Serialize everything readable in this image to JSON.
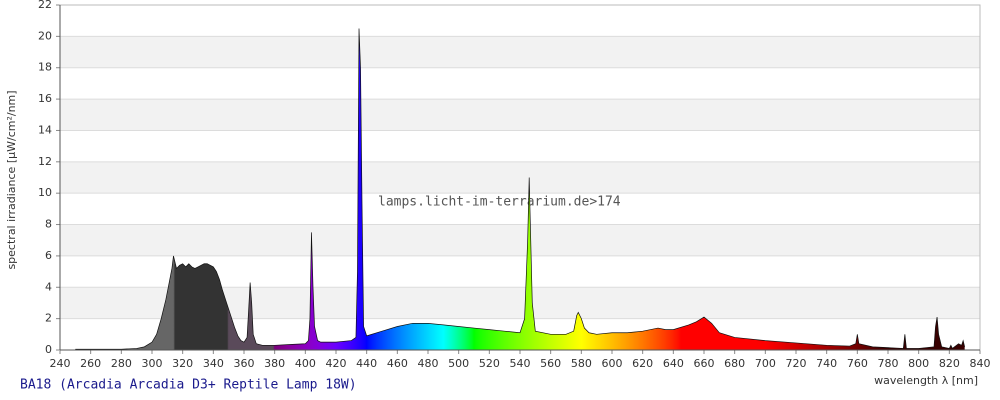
{
  "chart_data": {
    "type": "area",
    "ylabel": "spectral irradiance [µW/cm²/nm]",
    "xlabel": "wavelength λ [nm]",
    "watermark": "lamps.licht-im-terrarium.de>174",
    "caption": "BA18 (Arcadia Arcadia D3+ Reptile Lamp 18W)",
    "xlim": [
      240,
      840
    ],
    "ylim": [
      0,
      22
    ],
    "xticks": [
      240,
      260,
      280,
      300,
      320,
      340,
      360,
      380,
      400,
      420,
      440,
      460,
      480,
      500,
      520,
      540,
      560,
      580,
      600,
      620,
      640,
      660,
      680,
      700,
      720,
      740,
      760,
      780,
      800,
      820,
      840
    ],
    "yticks": [
      0,
      2,
      4,
      6,
      8,
      10,
      12,
      14,
      16,
      18,
      20,
      22
    ],
    "grid": true,
    "x": [
      250,
      260,
      270,
      280,
      290,
      295,
      300,
      303,
      306,
      309,
      311,
      313,
      314,
      315,
      316,
      318,
      320,
      322,
      324,
      326,
      328,
      330,
      332,
      334,
      336,
      338,
      340,
      342,
      344,
      346,
      348,
      350,
      352,
      354,
      356,
      358,
      360,
      362,
      363,
      364,
      365,
      366,
      368,
      372,
      380,
      390,
      400,
      402,
      403,
      404,
      405,
      406,
      408,
      410,
      420,
      430,
      433,
      434,
      435,
      436,
      437,
      438,
      440,
      450,
      460,
      470,
      480,
      490,
      500,
      510,
      520,
      530,
      540,
      543,
      545,
      546,
      547,
      548,
      550,
      560,
      570,
      575,
      577,
      578,
      580,
      582,
      585,
      590,
      600,
      610,
      620,
      630,
      635,
      640,
      650,
      655,
      660,
      665,
      670,
      680,
      700,
      720,
      740,
      755,
      759,
      760,
      761,
      770,
      780,
      790,
      791,
      792,
      800,
      810,
      811,
      812,
      813,
      815,
      820,
      821,
      822,
      826,
      828,
      829,
      830
    ],
    "values": [
      0.05,
      0.05,
      0.05,
      0.05,
      0.1,
      0.2,
      0.5,
      1.0,
      2,
      3.2,
      4.2,
      5.2,
      6.0,
      5.6,
      5.2,
      5.4,
      5.5,
      5.3,
      5.5,
      5.3,
      5.2,
      5.3,
      5.4,
      5.5,
      5.5,
      5.4,
      5.3,
      5.0,
      4.5,
      3.8,
      3.2,
      2.6,
      2.0,
      1.4,
      0.9,
      0.6,
      0.5,
      0.8,
      2.5,
      4.3,
      3.0,
      1.0,
      0.4,
      0.3,
      0.3,
      0.35,
      0.4,
      0.6,
      2,
      7.5,
      4.0,
      1.5,
      0.6,
      0.5,
      0.5,
      0.6,
      0.8,
      5,
      20.5,
      18,
      9,
      1.5,
      0.9,
      1.2,
      1.5,
      1.7,
      1.7,
      1.6,
      1.5,
      1.4,
      1.3,
      1.2,
      1.1,
      2,
      7,
      11,
      7,
      3,
      1.2,
      1.0,
      1.0,
      1.2,
      2.2,
      2.4,
      2.0,
      1.4,
      1.1,
      1.0,
      1.1,
      1.1,
      1.2,
      1.4,
      1.3,
      1.3,
      1.6,
      1.8,
      2.1,
      1.7,
      1.1,
      0.8,
      0.6,
      0.45,
      0.3,
      0.25,
      0.4,
      1.0,
      0.4,
      0.2,
      0.15,
      0.1,
      1.0,
      0.1,
      0.1,
      0.2,
      1.5,
      2.1,
      1.0,
      0.2,
      0.1,
      0.3,
      0.1,
      0.4,
      0.3,
      0.6,
      0.2
    ]
  }
}
